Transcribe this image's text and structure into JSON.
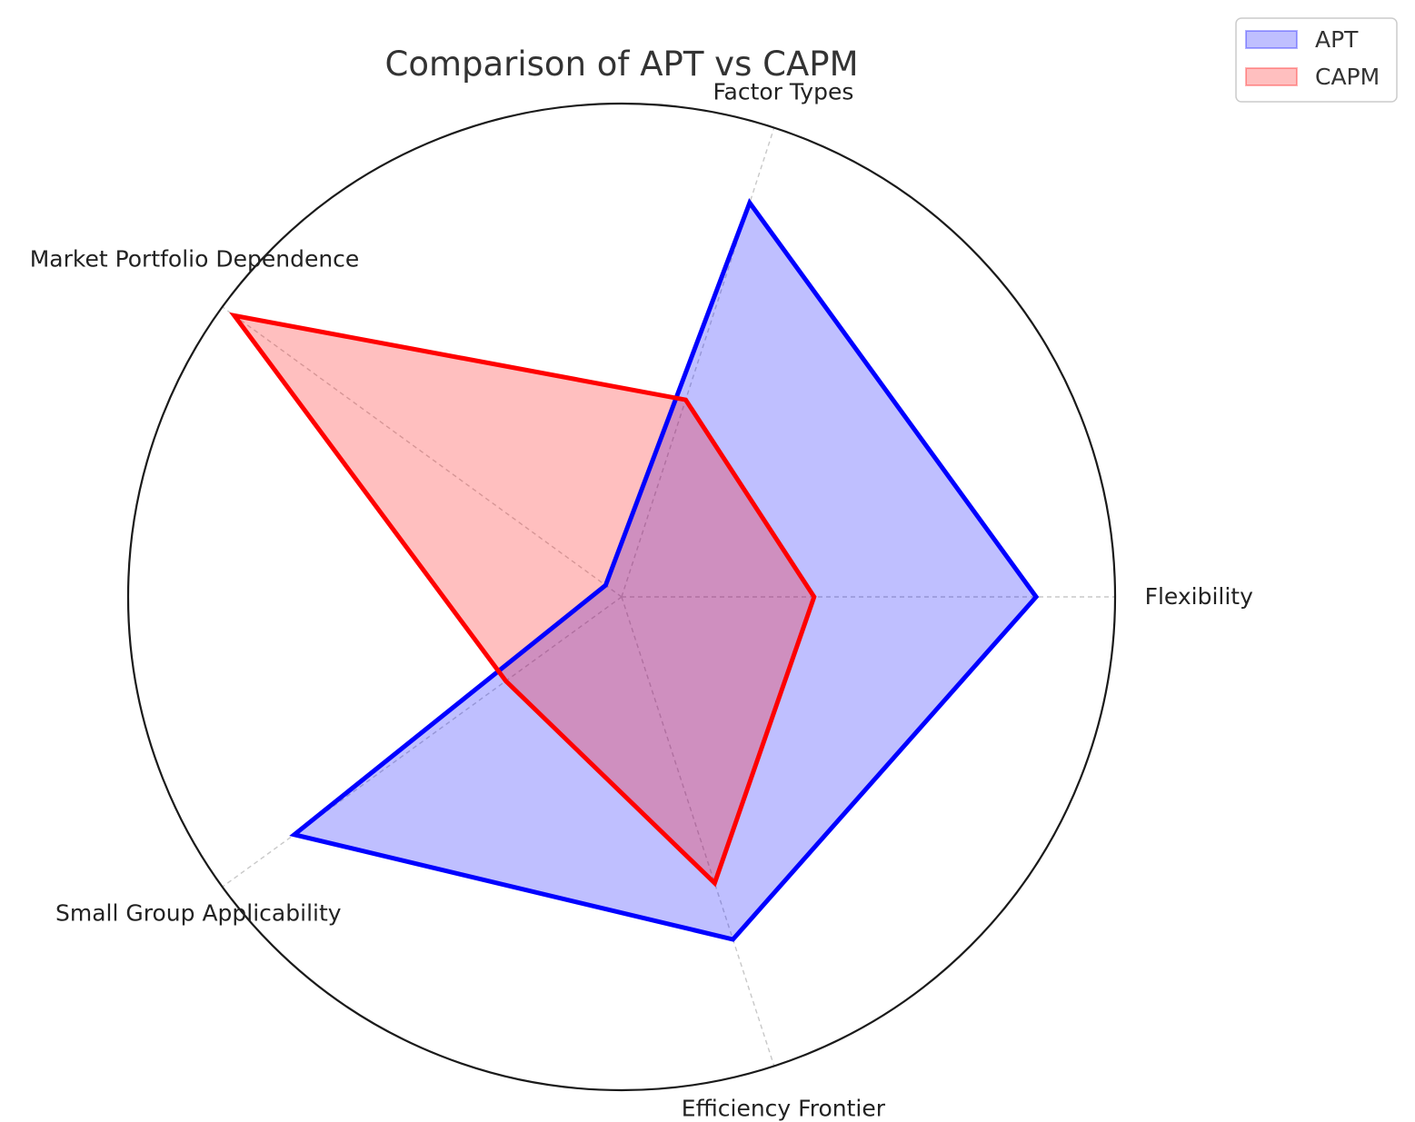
{
  "chart_data": {
    "type": "radar",
    "title": "Comparison of APT vs CAPM",
    "categories": [
      "Flexibility",
      "Factor Types",
      "Market Portfolio Dependence",
      "Small Group Applicability",
      "Efficiency Frontier"
    ],
    "rmax": 10,
    "grid": false,
    "legend_position": "top-right",
    "series": [
      {
        "name": "APT",
        "values": [
          8.4,
          8.4,
          0.4,
          8.2,
          7.3
        ],
        "color": "#0000ff",
        "fill": "#0000ff",
        "fill_opacity": 0.25
      },
      {
        "name": "CAPM",
        "values": [
          3.9,
          4.2,
          9.7,
          2.9,
          6.1
        ],
        "color": "#ff0000",
        "fill": "#ff0000",
        "fill_opacity": 0.25
      }
    ]
  }
}
